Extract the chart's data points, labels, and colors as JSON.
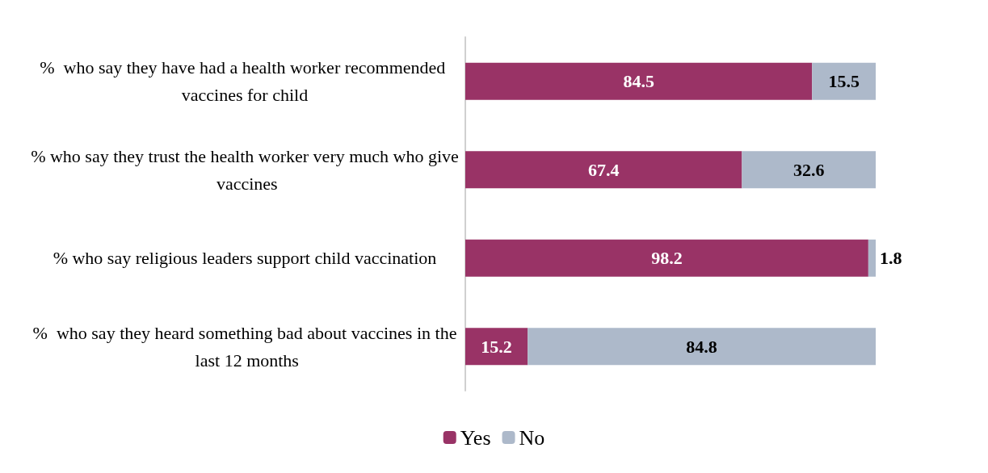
{
  "chart_data": {
    "type": "bar",
    "orientation": "horizontal",
    "stacked": true,
    "data_labels": true,
    "legend": "bottom",
    "grid": false,
    "tick_labels": "y",
    "xlim": [
      0,
      100
    ],
    "categories": [
      "%  who say they have had a health worker recommended vaccines for child",
      "% who say they trust the health worker very much who give vaccines",
      "% who say religious leaders support child vaccination",
      "%  who say they heard something bad about vaccines in the last 12 months"
    ],
    "series": [
      {
        "name": "Yes",
        "color": "#993366",
        "values": [
          84.5,
          67.4,
          98.2,
          15.2
        ]
      },
      {
        "name": "No",
        "color": "#adb9ca",
        "values": [
          15.5,
          32.6,
          1.8,
          84.8
        ]
      }
    ]
  }
}
